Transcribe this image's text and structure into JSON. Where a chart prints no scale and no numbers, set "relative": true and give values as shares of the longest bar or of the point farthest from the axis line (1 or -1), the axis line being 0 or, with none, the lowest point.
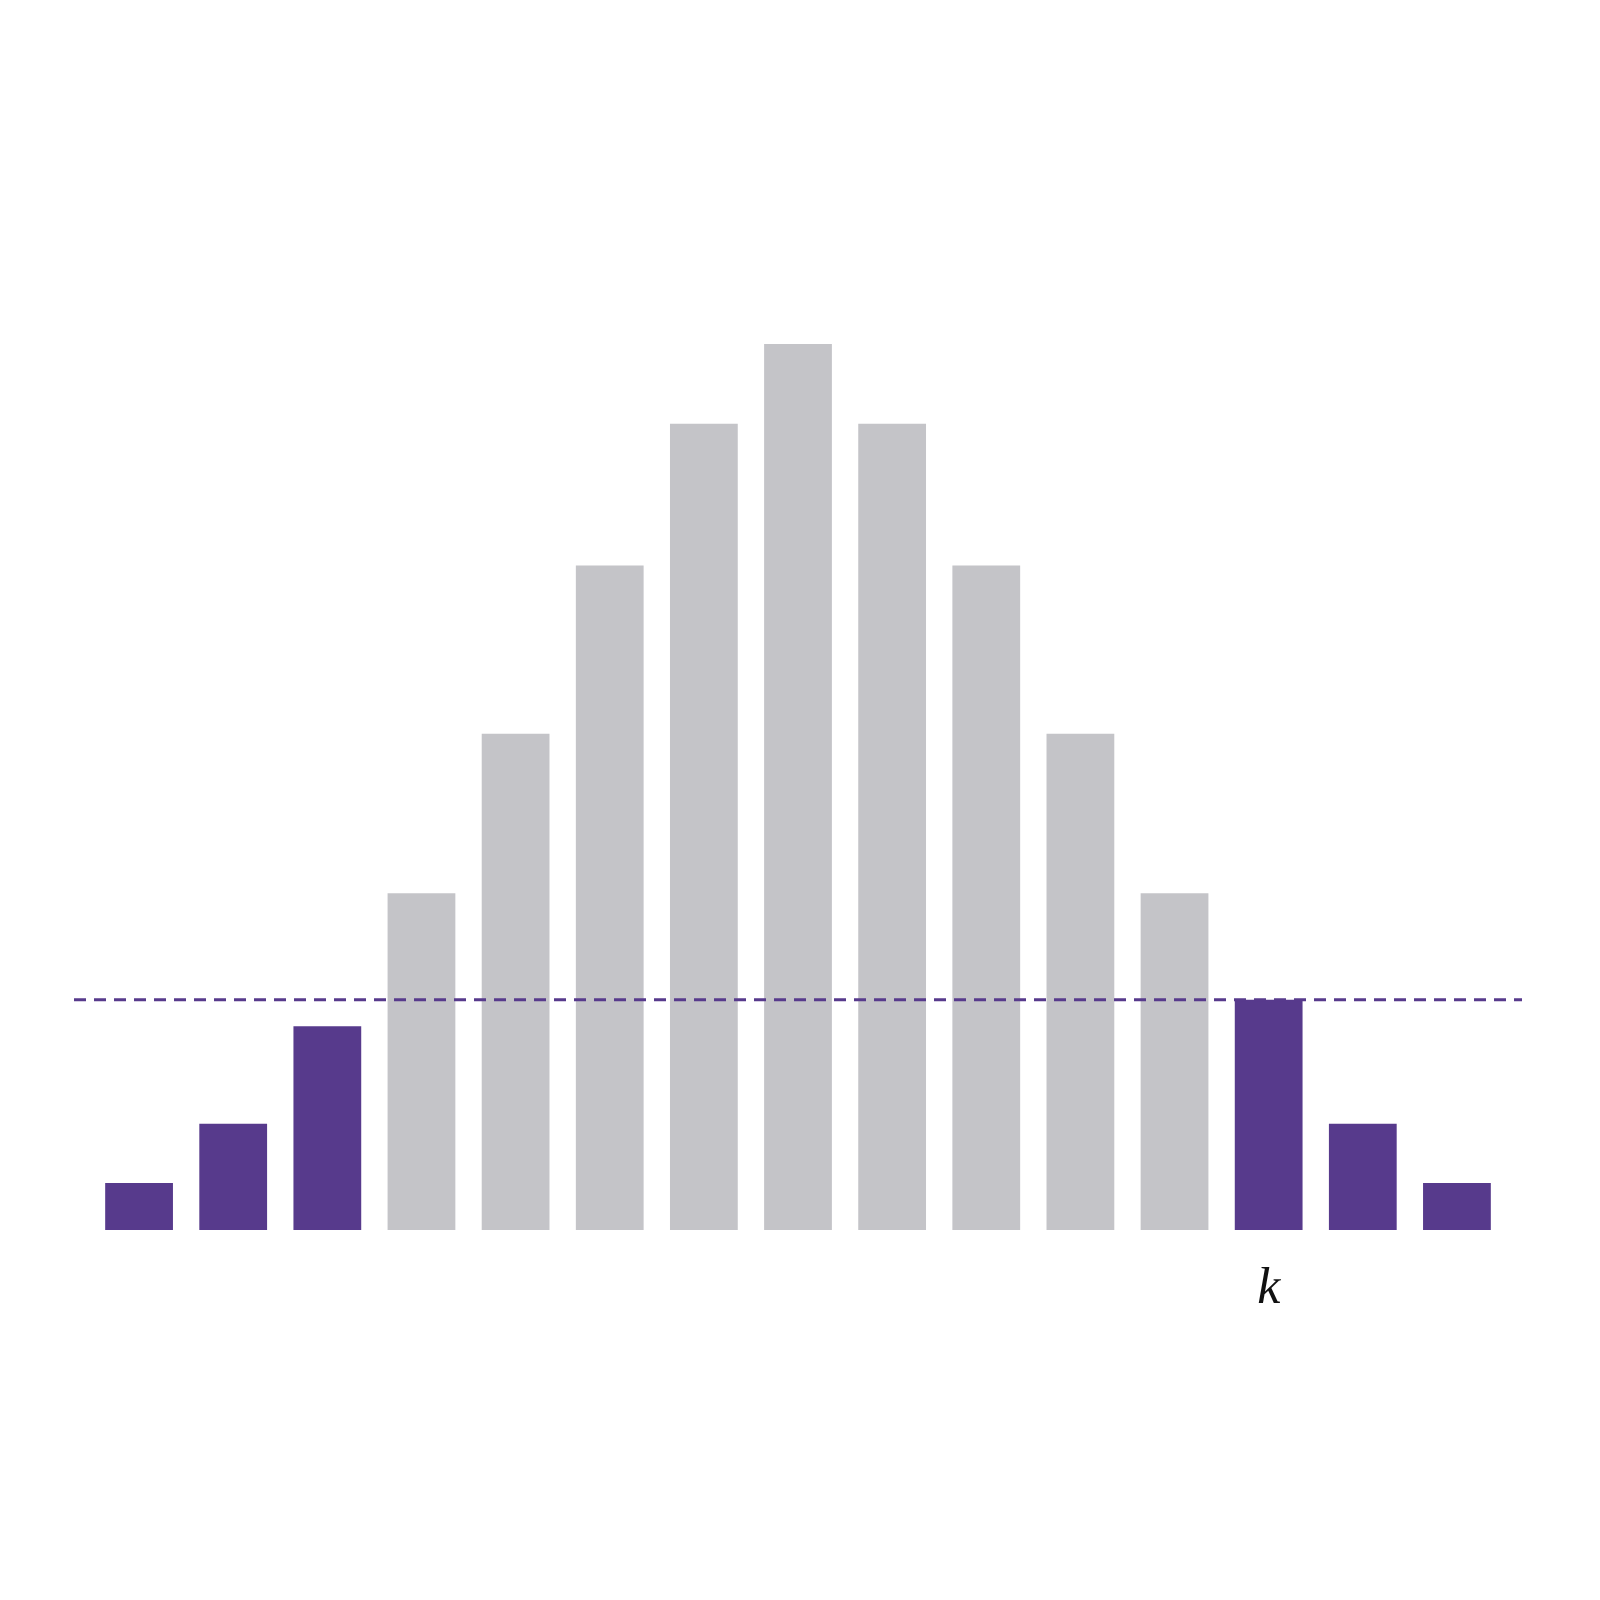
{
  "chart_data": {
    "type": "bar",
    "relative": true,
    "categories": [
      null,
      null,
      null,
      null,
      null,
      null,
      null,
      null,
      null,
      null,
      null,
      null,
      "k",
      null,
      null
    ],
    "values": [
      0.053,
      0.12,
      0.23,
      0.38,
      0.56,
      0.75,
      0.91,
      1,
      0.91,
      0.75,
      0.56,
      0.38,
      0.26,
      0.12,
      0.053
    ],
    "colors": [
      "#573a8c",
      "#573a8c",
      "#573a8c",
      "#c4c4c8",
      "#c4c4c8",
      "#c4c4c8",
      "#c4c4c8",
      "#c4c4c8",
      "#c4c4c8",
      "#c4c4c8",
      "#c4c4c8",
      "#c4c4c8",
      "#573a8c",
      "#573a8c",
      "#573a8c"
    ],
    "ref_lines": [
      {
        "axis": "y",
        "value": 0.26,
        "color": "#573a8c",
        "line_style": "dashed"
      }
    ],
    "grid": false,
    "legend": false
  }
}
